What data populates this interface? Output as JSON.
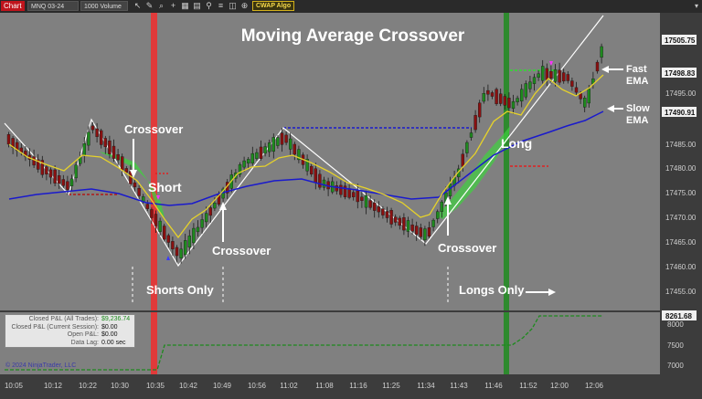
{
  "toolbar": {
    "chart_tab": "Chart",
    "instrument": "MNQ 03-24",
    "interval": "1000 Volume",
    "indicator_button": "CWAP Algo",
    "icons": [
      "cursor-icon",
      "pencil-icon",
      "zoom-icon",
      "plus-icon",
      "grid-icon",
      "calendar-icon",
      "pin-icon",
      "list-icon",
      "layers-icon",
      "crosshair-icon"
    ],
    "right_icon": "dropdown-icon"
  },
  "annotations": {
    "title": "Moving Average Crossover",
    "crossover_1": "Crossover",
    "short": "Short",
    "crossover_2": "Crossover",
    "shorts_only": "Shorts Only",
    "crossover_3": "Crossover",
    "long": "Long",
    "longs_only": "Longs Only",
    "fast_ema": [
      "Fast",
      "EMA"
    ],
    "slow_ema": [
      "Slow",
      "EMA"
    ]
  },
  "price_axis": {
    "labels": [
      "17495.00",
      "17485.00",
      "17480.00",
      "17475.00",
      "17470.00",
      "17465.00",
      "17460.00",
      "17455.00"
    ],
    "tags": [
      {
        "text": "17505.75",
        "color": "#f0f0f0"
      },
      {
        "text": "17498.83",
        "color": "#f0f0f0"
      },
      {
        "text": "17490.91",
        "color": "#f0f0f0"
      }
    ]
  },
  "pnl_axis": {
    "labels": [
      "8000",
      "7500",
      "7000"
    ],
    "tag": "8261.68"
  },
  "time_axis": [
    "10:05",
    "10:12",
    "10:22",
    "10:30",
    "10:35",
    "10:42",
    "10:49",
    "10:56",
    "11:02",
    "11:08",
    "11:16",
    "11:25",
    "11:34",
    "11:43",
    "11:46",
    "11:52",
    "12:00",
    "12:06"
  ],
  "pnl_panel": {
    "rows": [
      {
        "label": "Closed P&L (All Trades):",
        "value": "$9,236.74"
      },
      {
        "label": "Closed P&L (Current Session):",
        "value": "$0.00"
      },
      {
        "label": "Open P&L:",
        "value": "$0.00"
      },
      {
        "label": "Data Lag:",
        "value": "0.00 sec"
      }
    ]
  },
  "copyright": "© 2024 NinjaTrader, LLC",
  "colors": {
    "up": "#1e8a1e",
    "down": "#8a1010",
    "fast_ema": "#e6d22a",
    "slow_ema": "#1a1acc",
    "short_zone": "#e03a3a",
    "long_zone": "#2e8a2e",
    "ribbon": "#3fd13f"
  }
}
